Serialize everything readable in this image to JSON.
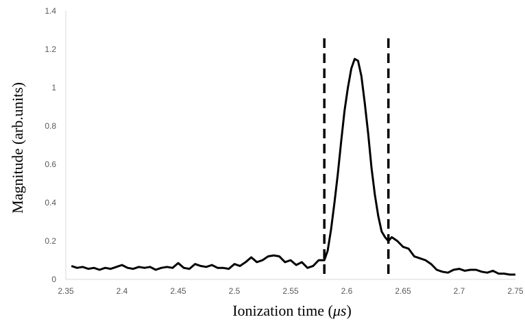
{
  "chart_data": {
    "type": "line",
    "title": "",
    "xlabel": "Ionization time (",
    "xlabel_unit": "μs",
    "xlabel_close": ")",
    "ylabel": "Magnitude (arb.units)",
    "xlim": [
      2.35,
      2.75
    ],
    "ylim": [
      0,
      1.4
    ],
    "xticks": [
      "2.35",
      "2.4",
      "2.45",
      "2.5",
      "2.55",
      "2.6",
      "2.65",
      "2.7",
      "2.75"
    ],
    "yticks": [
      "0",
      "0.2",
      "0.4",
      "0.6",
      "0.8",
      "1",
      "1.2",
      "1.4"
    ],
    "grid": false,
    "legend": "none",
    "vlines": [
      2.58,
      2.637
    ],
    "series": [
      {
        "name": "",
        "color": "#000000",
        "x": [
          2.355,
          2.36,
          2.365,
          2.37,
          2.375,
          2.38,
          2.385,
          2.39,
          2.395,
          2.4,
          2.405,
          2.41,
          2.415,
          2.42,
          2.425,
          2.43,
          2.435,
          2.44,
          2.445,
          2.45,
          2.455,
          2.46,
          2.465,
          2.47,
          2.475,
          2.48,
          2.485,
          2.49,
          2.495,
          2.5,
          2.505,
          2.51,
          2.515,
          2.52,
          2.525,
          2.53,
          2.535,
          2.54,
          2.545,
          2.55,
          2.555,
          2.56,
          2.565,
          2.57,
          2.575,
          2.58,
          2.583,
          2.586,
          2.589,
          2.592,
          2.595,
          2.598,
          2.601,
          2.604,
          2.607,
          2.61,
          2.613,
          2.616,
          2.619,
          2.622,
          2.625,
          2.628,
          2.631,
          2.634,
          2.637,
          2.64,
          2.645,
          2.65,
          2.655,
          2.66,
          2.665,
          2.67,
          2.675,
          2.68,
          2.685,
          2.69,
          2.695,
          2.7,
          2.705,
          2.71,
          2.715,
          2.72,
          2.725,
          2.73,
          2.735,
          2.74,
          2.745,
          2.75
        ],
        "y": [
          0.07,
          0.06,
          0.065,
          0.055,
          0.06,
          0.05,
          0.06,
          0.055,
          0.065,
          0.075,
          0.06,
          0.055,
          0.065,
          0.06,
          0.065,
          0.05,
          0.06,
          0.065,
          0.06,
          0.085,
          0.06,
          0.055,
          0.08,
          0.07,
          0.065,
          0.075,
          0.06,
          0.06,
          0.055,
          0.08,
          0.07,
          0.09,
          0.115,
          0.09,
          0.1,
          0.12,
          0.125,
          0.12,
          0.09,
          0.1,
          0.075,
          0.09,
          0.06,
          0.07,
          0.1,
          0.1,
          0.15,
          0.26,
          0.4,
          0.55,
          0.72,
          0.88,
          1.0,
          1.1,
          1.15,
          1.14,
          1.06,
          0.92,
          0.76,
          0.58,
          0.44,
          0.33,
          0.25,
          0.22,
          0.2,
          0.22,
          0.2,
          0.17,
          0.16,
          0.12,
          0.11,
          0.1,
          0.08,
          0.05,
          0.04,
          0.035,
          0.05,
          0.055,
          0.045,
          0.05,
          0.05,
          0.04,
          0.035,
          0.045,
          0.03,
          0.03,
          0.025,
          0.025
        ]
      }
    ]
  }
}
